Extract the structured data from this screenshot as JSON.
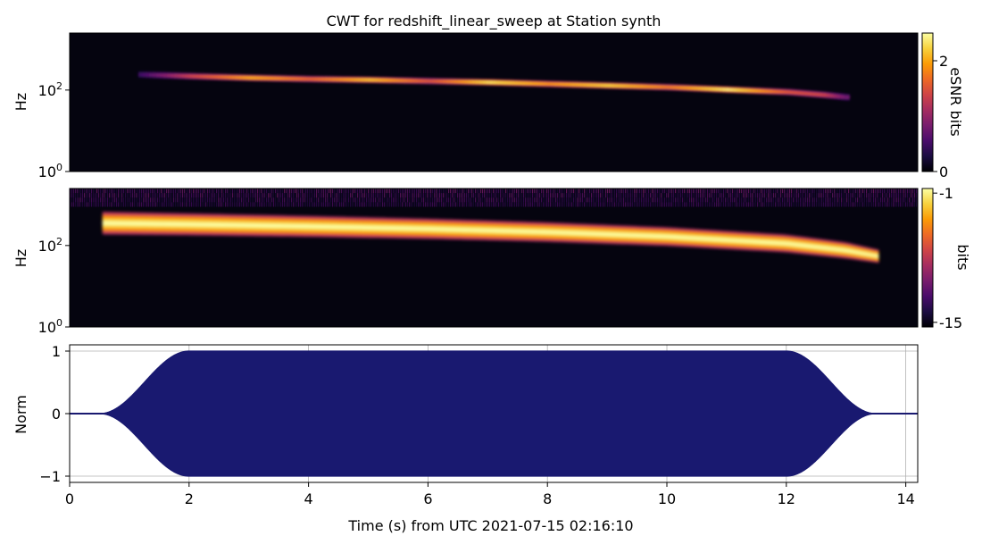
{
  "title": "CWT for redshift_linear_sweep at Station synth",
  "xlabel": "Time (s) from UTC 2021-07-15 02:16:10",
  "colors": {
    "background": "#ffffff",
    "spectrogram_bg": "#05040f",
    "waveform": "#191970",
    "grid": "#b0b0b0",
    "colormap": [
      "#000004",
      "#1b0c41",
      "#4a0c6b",
      "#781c6d",
      "#a52c60",
      "#cf4446",
      "#ed6925",
      "#fb9b06",
      "#f7d13d",
      "#fcffa4"
    ]
  },
  "chart_data": [
    {
      "type": "heatmap",
      "name": "CWT eSNR",
      "ylabel": "Hz",
      "yscale": "log",
      "ytick_labels": [
        "10^0",
        "10^2"
      ],
      "ylim_log10": [
        0,
        3.4
      ],
      "xlim": [
        0,
        14.2
      ],
      "colorbar": {
        "label": "eSNR bits",
        "ticks": [
          "0",
          "2"
        ],
        "range": [
          0,
          2.5
        ]
      },
      "ridge": {
        "x": [
          1.15,
          2,
          3,
          4,
          5,
          6,
          7,
          8,
          9,
          10,
          11,
          12,
          12.6,
          13.0
        ],
        "log10_hz": [
          2.38,
          2.34,
          2.3,
          2.27,
          2.25,
          2.22,
          2.19,
          2.15,
          2.11,
          2.07,
          2.01,
          1.95,
          1.88,
          1.82
        ],
        "intensity": [
          0.2,
          0.55,
          0.8,
          0.65,
          0.85,
          0.6,
          0.92,
          0.75,
          0.88,
          0.7,
          0.95,
          0.6,
          0.55,
          0.3
        ]
      }
    },
    {
      "type": "heatmap",
      "name": "CWT power",
      "ylabel": "Hz",
      "yscale": "log",
      "ytick_labels": [
        "10^0",
        "10^2"
      ],
      "ylim_log10": [
        0,
        3.4
      ],
      "xlim": [
        0,
        14.2
      ],
      "colorbar": {
        "label": "bits",
        "ticks": [
          "-1",
          "-15"
        ],
        "range": [
          -15.5,
          -0.5
        ]
      },
      "band": {
        "x": [
          0.55,
          2,
          4,
          6,
          8,
          10,
          12,
          13,
          13.6
        ],
        "log10_hz_center": [
          2.55,
          2.52,
          2.47,
          2.41,
          2.33,
          2.22,
          2.05,
          1.88,
          1.72
        ],
        "half_width_log10": [
          0.28,
          0.27,
          0.26,
          0.25,
          0.24,
          0.23,
          0.22,
          0.2,
          0.16
        ]
      },
      "noise_floor_log10": 2.95
    },
    {
      "type": "line",
      "name": "Waveform",
      "ylabel": "Norm",
      "xlabel": "Time (s) from UTC 2021-07-15 02:16:10",
      "xlim": [
        0,
        14.2
      ],
      "ylim": [
        -1.1,
        1.1
      ],
      "xticks": [
        "0",
        "2",
        "4",
        "6",
        "8",
        "10",
        "12",
        "14"
      ],
      "yticks": [
        "1",
        "0",
        "−1"
      ],
      "grid": true,
      "envelope": {
        "x": [
          0,
          0.5,
          1.0,
          1.5,
          2.0,
          12.0,
          12.5,
          13.0,
          13.5,
          14.2
        ],
        "amp": [
          0.0,
          0.0,
          0.35,
          0.8,
          1.0,
          1.0,
          0.8,
          0.35,
          0.0,
          0.0
        ]
      }
    }
  ]
}
